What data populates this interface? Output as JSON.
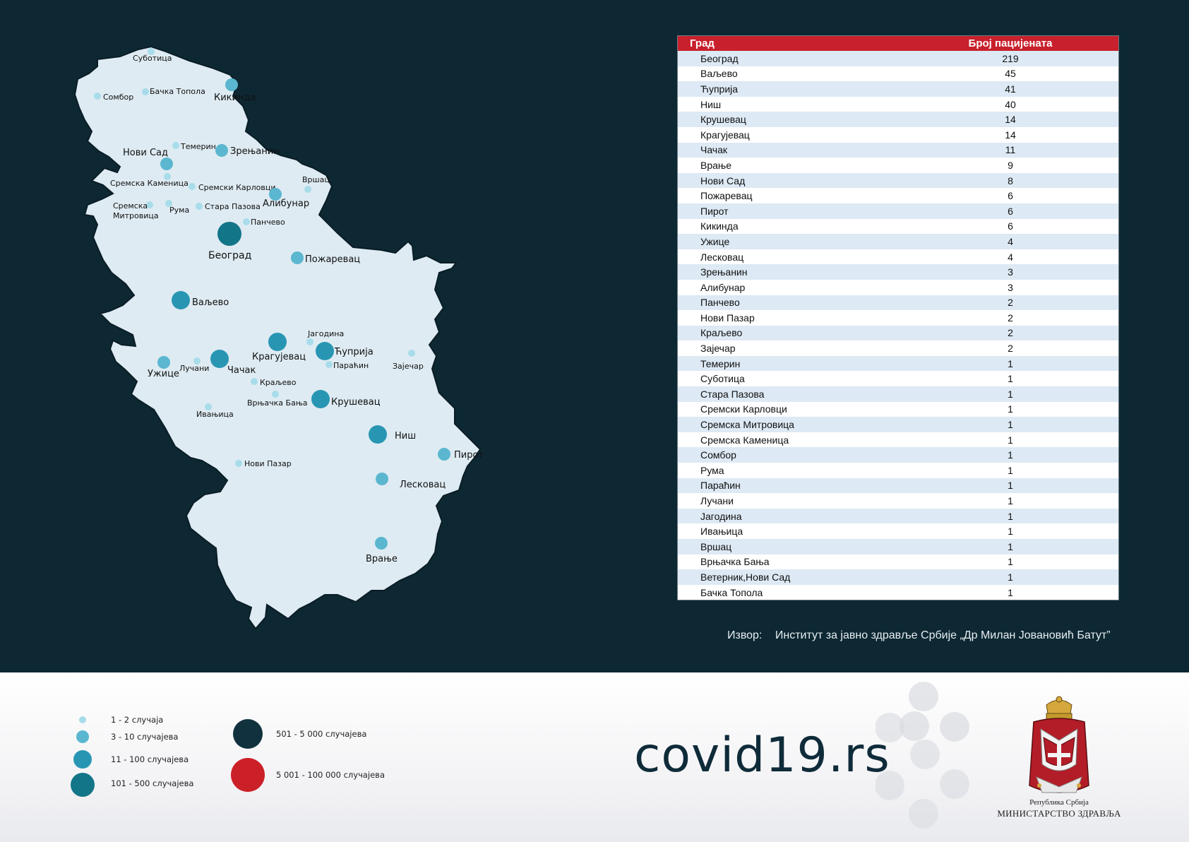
{
  "table": {
    "header_city": "Град",
    "header_count": "Број пацијената",
    "rows": [
      {
        "city": "Београд",
        "count": "219"
      },
      {
        "city": "Ваљево",
        "count": "45"
      },
      {
        "city": "Ћуприја",
        "count": "41"
      },
      {
        "city": "Ниш",
        "count": "40"
      },
      {
        "city": "Крушевац",
        "count": "14"
      },
      {
        "city": "Крагујевац",
        "count": "14"
      },
      {
        "city": "Чачак",
        "count": "11"
      },
      {
        "city": "Врање",
        "count": "9"
      },
      {
        "city": "Нови Сад",
        "count": "8"
      },
      {
        "city": "Пожаревац",
        "count": "6"
      },
      {
        "city": "Пирот",
        "count": "6"
      },
      {
        "city": "Кикинда",
        "count": "6"
      },
      {
        "city": "Ужице",
        "count": "4"
      },
      {
        "city": "Лесковац",
        "count": "4"
      },
      {
        "city": "Зрењанин",
        "count": "3"
      },
      {
        "city": "Алибунар",
        "count": "3"
      },
      {
        "city": "Панчево",
        "count": "2"
      },
      {
        "city": "Нови Пазар",
        "count": "2"
      },
      {
        "city": "Краљево",
        "count": "2"
      },
      {
        "city": "Зајечар",
        "count": "2"
      },
      {
        "city": "Темерин",
        "count": "1"
      },
      {
        "city": "Суботица",
        "count": "1"
      },
      {
        "city": "Стара Пазова",
        "count": "1"
      },
      {
        "city": "Сремски Карловци",
        "count": "1"
      },
      {
        "city": "Сремска Митровица",
        "count": "1"
      },
      {
        "city": "Сремска Каменица",
        "count": "1"
      },
      {
        "city": "Сомбор",
        "count": "1"
      },
      {
        "city": "Рума",
        "count": "1"
      },
      {
        "city": "Параћин",
        "count": "1"
      },
      {
        "city": "Лучани",
        "count": "1"
      },
      {
        "city": "Јагодина",
        "count": "1"
      },
      {
        "city": "Ивањица",
        "count": "1"
      },
      {
        "city": "Вршац",
        "count": "1"
      },
      {
        "city": "Врњачка Бања",
        "count": "1"
      },
      {
        "city": "Ветерник,Нови Сад",
        "count": "1"
      },
      {
        "city": "Бачка Топола",
        "count": "1"
      }
    ]
  },
  "source": {
    "label": "Извор:",
    "text": "Институт за јавно здравље Србије „Др Милан Јовановић Батут”"
  },
  "map": {
    "fill_color": "#deebf2",
    "markers": [
      {
        "city": "Суботица",
        "label": "Суботица",
        "tier": 1
      },
      {
        "city": "Сомбор",
        "label": "Сомбор",
        "tier": 1
      },
      {
        "city": "Бачка Топола",
        "label": "Бачка Топола",
        "tier": 1
      },
      {
        "city": "Кикинда",
        "label": "Кикинда",
        "tier": 2
      },
      {
        "city": "Темерин",
        "label": "Темерин",
        "tier": 1
      },
      {
        "city": "Зрењанин",
        "label": "Зрењанин",
        "tier": 2
      },
      {
        "city": "Нови Сад",
        "label": "Нови Сад",
        "tier": 2
      },
      {
        "city": "Сремска Каменица",
        "label": "Сремска Каменица",
        "tier": 1
      },
      {
        "city": "Сремски Карловци",
        "label": "Сремски Карловци",
        "tier": 1
      },
      {
        "city": "Вршац",
        "label": "Вршац",
        "tier": 1
      },
      {
        "city": "Алибунар",
        "label": "Алибунар",
        "tier": 2
      },
      {
        "city": "Сремска Митровица",
        "label": "Сремска",
        "label2": "Митровица",
        "tier": 1
      },
      {
        "city": "Рума",
        "label": "Рума",
        "tier": 1
      },
      {
        "city": "Стара Пазова",
        "label": "Стара Пазова",
        "tier": 1
      },
      {
        "city": "Панчево",
        "label": "Панчево",
        "tier": 1
      },
      {
        "city": "Београд",
        "label": "Београд",
        "tier": 4
      },
      {
        "city": "Пожаревац",
        "label": "Пожаревац",
        "tier": 2
      },
      {
        "city": "Ваљево",
        "label": "Ваљево",
        "tier": 3
      },
      {
        "city": "Јагодина",
        "label": "Јагодина",
        "tier": 1
      },
      {
        "city": "Крагујевац",
        "label": "Крагујевац",
        "tier": 3
      },
      {
        "city": "Ћуприја",
        "label": "Ћуприја",
        "tier": 3
      },
      {
        "city": "Параћин",
        "label": "Параћин",
        "tier": 1
      },
      {
        "city": "Зајечар",
        "label": "Зајечар",
        "tier": 1
      },
      {
        "city": "Ужице",
        "label": "Ужице",
        "tier": 2
      },
      {
        "city": "Лучани",
        "label": "Лучани",
        "tier": 1
      },
      {
        "city": "Чачак",
        "label": "Чачак",
        "tier": 3
      },
      {
        "city": "Краљево",
        "label": "Краљево",
        "tier": 1
      },
      {
        "city": "Врњачка Бања",
        "label": "Врњачка Бања",
        "tier": 1
      },
      {
        "city": "Крушевац",
        "label": "Крушевац",
        "tier": 3
      },
      {
        "city": "Ивањица",
        "label": "Ивањица",
        "tier": 1
      },
      {
        "city": "Ниш",
        "label": "Ниш",
        "tier": 3
      },
      {
        "city": "Пирот",
        "label": "Пирот",
        "tier": 2
      },
      {
        "city": "Нови Пазар",
        "label": "Нови Пазар",
        "tier": 1
      },
      {
        "city": "Лесковац",
        "label": "Лесковац",
        "tier": 2
      },
      {
        "city": "Врање",
        "label": "Врање",
        "tier": 2
      }
    ]
  },
  "legend": {
    "items": [
      {
        "label": "1 - 2 случаја",
        "color": "#a8dcea",
        "tier": 1
      },
      {
        "label": "3 - 10 случајева",
        "color": "#5bb7d0",
        "tier": 2
      },
      {
        "label": "11 - 100 случајева",
        "color": "#2896b3",
        "tier": 3
      },
      {
        "label": "101 - 500 случајева",
        "color": "#137588",
        "tier": 4
      },
      {
        "label": "501 - 5 000 случајева",
        "color": "#12313e",
        "tier": 5
      },
      {
        "label": "5 001 - 100 000 случајева",
        "color": "#cc2028",
        "tier": 6
      }
    ]
  },
  "footer": {
    "site": "covid19.rs",
    "ministry_line1": "Република Србија",
    "ministry_line2": "МИНИСТАРСТВО ЗДРАВЉА"
  }
}
